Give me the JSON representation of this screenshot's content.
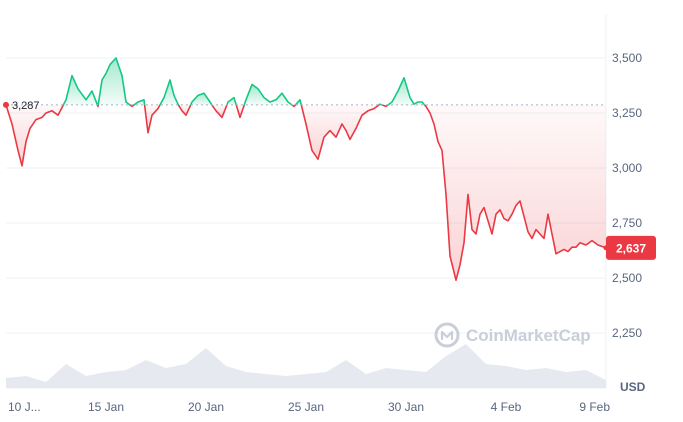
{
  "chart_data": {
    "type": "line",
    "y_ticks": [
      2250,
      2500,
      2750,
      3000,
      3250,
      3500
    ],
    "y_tick_labels": [
      "2,250",
      "2,500",
      "2,750",
      "3,000",
      "3,250",
      "3,500"
    ],
    "ylim": [
      2000,
      3700
    ],
    "y_unit": "USD",
    "x_ticks": [
      0,
      5,
      10,
      15,
      20,
      25,
      30
    ],
    "x_tick_labels": [
      "10 J...",
      "15 Jan",
      "20 Jan",
      "25 Jan",
      "30 Jan",
      "4 Feb",
      "9 Feb"
    ],
    "xlim": [
      0,
      30
    ],
    "open_price": 3287,
    "open_price_label": "3,287",
    "current_price": 2637,
    "current_price_label": "2,637",
    "grid": true,
    "series": [
      {
        "x": [
          0,
          0.3,
          0.6,
          0.8,
          1.0,
          1.2,
          1.5,
          1.8,
          2.0,
          2.3,
          2.6,
          3.0,
          3.3,
          3.6,
          4.0,
          4.3,
          4.6,
          4.8,
          5.0,
          5.2,
          5.5,
          5.8,
          6.0,
          6.3,
          6.6,
          6.9,
          7.1,
          7.3,
          7.6,
          7.9,
          8.2,
          8.4,
          8.6,
          8.8,
          9.0,
          9.3,
          9.6,
          9.9,
          10.2,
          10.5,
          10.8,
          11.1,
          11.4,
          11.7,
          12.0,
          12.3,
          12.6,
          12.9,
          13.2,
          13.5,
          13.8,
          14.1,
          14.4,
          14.7,
          15.0,
          15.3,
          15.6,
          15.9,
          16.2,
          16.5,
          16.8,
          17.0,
          17.2,
          17.5,
          17.8,
          18.1,
          18.4,
          18.7,
          19.0,
          19.3,
          19.6,
          19.9,
          20.2,
          20.4,
          20.6,
          20.8,
          21.0,
          21.2,
          21.4,
          21.6,
          21.8,
          22.0,
          22.2,
          22.5,
          22.7,
          22.9,
          23.1,
          23.3,
          23.5,
          23.7,
          23.9,
          24.1,
          24.3,
          24.5,
          24.7,
          24.9,
          25.1,
          25.3,
          25.5,
          25.7,
          25.9,
          26.1,
          26.3,
          26.5,
          26.7,
          26.9,
          27.1,
          27.3,
          27.5,
          27.7,
          27.9,
          28.1,
          28.3,
          28.5,
          28.7,
          29.0,
          29.3,
          29.6,
          30.0
        ],
        "values": [
          3287,
          3200,
          3080,
          3010,
          3120,
          3180,
          3220,
          3230,
          3250,
          3260,
          3240,
          3310,
          3420,
          3360,
          3310,
          3350,
          3280,
          3400,
          3430,
          3470,
          3500,
          3420,
          3300,
          3280,
          3300,
          3310,
          3160,
          3240,
          3270,
          3320,
          3400,
          3330,
          3290,
          3260,
          3240,
          3300,
          3330,
          3340,
          3300,
          3260,
          3230,
          3300,
          3320,
          3230,
          3310,
          3380,
          3360,
          3320,
          3300,
          3310,
          3340,
          3300,
          3280,
          3310,
          3200,
          3080,
          3040,
          3140,
          3170,
          3140,
          3200,
          3170,
          3130,
          3180,
          3240,
          3260,
          3270,
          3290,
          3280,
          3300,
          3350,
          3410,
          3320,
          3290,
          3300,
          3300,
          3280,
          3250,
          3200,
          3120,
          3080,
          2880,
          2600,
          2490,
          2560,
          2660,
          2880,
          2720,
          2700,
          2790,
          2820,
          2760,
          2700,
          2790,
          2810,
          2770,
          2760,
          2790,
          2830,
          2850,
          2780,
          2710,
          2680,
          2720,
          2700,
          2680,
          2790,
          2700,
          2610,
          2620,
          2630,
          2620,
          2640,
          2640,
          2660,
          2650,
          2670,
          2650,
          2637
        ]
      }
    ],
    "volume": {
      "x": [
        0,
        1,
        2,
        3,
        4,
        5,
        6,
        7,
        8,
        9,
        10,
        11,
        12,
        13,
        14,
        15,
        16,
        17,
        18,
        19,
        20,
        21,
        22,
        23,
        24,
        25,
        26,
        27,
        28,
        29,
        30
      ],
      "values": [
        0.25,
        0.3,
        0.15,
        0.6,
        0.3,
        0.4,
        0.45,
        0.7,
        0.5,
        0.6,
        1.0,
        0.55,
        0.4,
        0.35,
        0.3,
        0.35,
        0.4,
        0.7,
        0.35,
        0.5,
        0.45,
        0.4,
        0.8,
        1.1,
        0.6,
        0.55,
        0.45,
        0.5,
        0.4,
        0.45,
        0.2
      ]
    },
    "colors": {
      "up": "#16c784",
      "down": "#ea3943",
      "grid": "#eff2f5",
      "baseline": "#a6b0c3",
      "volume": "#e2e6ed"
    }
  },
  "watermark": {
    "brand": "CoinMarketCap",
    "icon": "coinmarketcap-logo-icon"
  }
}
